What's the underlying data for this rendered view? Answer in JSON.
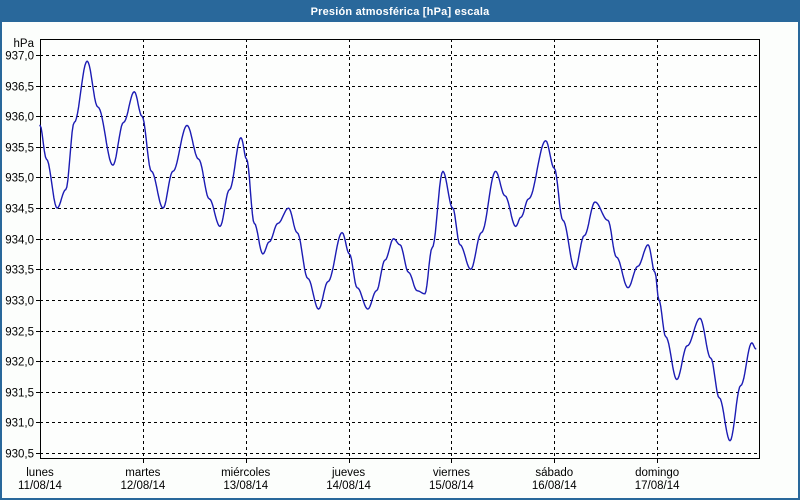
{
  "window": {
    "title": "Presión atmosférica [hPa] escala"
  },
  "colors": {
    "titlebar_bg": "#29689b",
    "window_border": "#29689b",
    "line": "#1c1cb4",
    "grid": "#000000",
    "axis": "#000000",
    "plot_bg": "#fdfefd",
    "outer_bg": "#fcfefc",
    "label_text": "#000000",
    "title_text": "#ffffff"
  },
  "chart_data": {
    "type": "line",
    "title": "Presión atmosférica [hPa] escala",
    "unit_label": "hPa",
    "ylabel": "hPa",
    "ylim": [
      930.5,
      937.0
    ],
    "ytick_step": 0.5,
    "y_tick_labels": [
      "937,0",
      "936,5",
      "936,0",
      "935,5",
      "935,0",
      "934,5",
      "934,0",
      "933,5",
      "933,0",
      "932,5",
      "932,0",
      "931,5",
      "931,0",
      "930,5"
    ],
    "grid": "dashed",
    "legend_position": "none",
    "x_axis": {
      "hours_total": 168,
      "hours_per_day": 24,
      "days": [
        {
          "name": "lunes",
          "date": "11/08/14"
        },
        {
          "name": "martes",
          "date": "12/08/14"
        },
        {
          "name": "miércoles",
          "date": "13/08/14"
        },
        {
          "name": "jueves",
          "date": "14/08/14"
        },
        {
          "name": "viernes",
          "date": "15/08/14"
        },
        {
          "name": "sábado",
          "date": "16/08/14"
        },
        {
          "name": "domingo",
          "date": "17/08/14"
        }
      ]
    },
    "series": [
      {
        "name": "Presión atmosférica",
        "color": "#1c1cb4",
        "points_format": "[hour_from_monday_00, hPa]",
        "points": [
          [
            0,
            935.85
          ],
          [
            1.5,
            935.3
          ],
          [
            4,
            934.5
          ],
          [
            6,
            934.8
          ],
          [
            8,
            935.9
          ],
          [
            11,
            936.9
          ],
          [
            13.5,
            936.15
          ],
          [
            17,
            935.2
          ],
          [
            19.5,
            935.9
          ],
          [
            22,
            936.4
          ],
          [
            23.8,
            936.0
          ],
          [
            26,
            935.1
          ],
          [
            28.7,
            934.5
          ],
          [
            31,
            935.1
          ],
          [
            34.3,
            935.85
          ],
          [
            37,
            935.3
          ],
          [
            39.5,
            934.65
          ],
          [
            42,
            934.2
          ],
          [
            44.2,
            934.8
          ],
          [
            46.9,
            935.65
          ],
          [
            48.2,
            935.3
          ],
          [
            50,
            934.25
          ],
          [
            52,
            933.75
          ],
          [
            53.5,
            933.95
          ],
          [
            55.5,
            934.25
          ],
          [
            58,
            934.5
          ],
          [
            60,
            934.1
          ],
          [
            62.5,
            933.35
          ],
          [
            65,
            932.85
          ],
          [
            67.2,
            933.3
          ],
          [
            70.5,
            934.1
          ],
          [
            72.2,
            933.75
          ],
          [
            74,
            933.2
          ],
          [
            76.5,
            932.85
          ],
          [
            78.5,
            933.15
          ],
          [
            80.5,
            933.65
          ],
          [
            82.5,
            934.0
          ],
          [
            84,
            933.9
          ],
          [
            86,
            933.45
          ],
          [
            88,
            933.15
          ],
          [
            89.8,
            933.1
          ],
          [
            91.5,
            933.85
          ],
          [
            94,
            935.1
          ],
          [
            96.3,
            934.5
          ],
          [
            98,
            933.9
          ],
          [
            100.5,
            933.5
          ],
          [
            103,
            934.1
          ],
          [
            106.3,
            935.1
          ],
          [
            108.5,
            934.7
          ],
          [
            111,
            934.2
          ],
          [
            112.2,
            934.35
          ],
          [
            114,
            934.65
          ],
          [
            118,
            935.6
          ],
          [
            120,
            935.15
          ],
          [
            122,
            934.3
          ],
          [
            124.8,
            933.5
          ],
          [
            127,
            934.05
          ],
          [
            129.5,
            934.6
          ],
          [
            132.5,
            934.3
          ],
          [
            134.5,
            933.7
          ],
          [
            137.2,
            933.2
          ],
          [
            139.5,
            933.55
          ],
          [
            141.9,
            933.9
          ],
          [
            143.5,
            933.45
          ],
          [
            144.4,
            933.0
          ],
          [
            146,
            932.4
          ],
          [
            148.6,
            931.7
          ],
          [
            151,
            932.25
          ],
          [
            154,
            932.7
          ],
          [
            156.5,
            932.05
          ],
          [
            158.5,
            931.4
          ],
          [
            161,
            930.7
          ],
          [
            163.5,
            931.6
          ],
          [
            166.1,
            932.3
          ],
          [
            167,
            932.2
          ]
        ]
      }
    ]
  }
}
